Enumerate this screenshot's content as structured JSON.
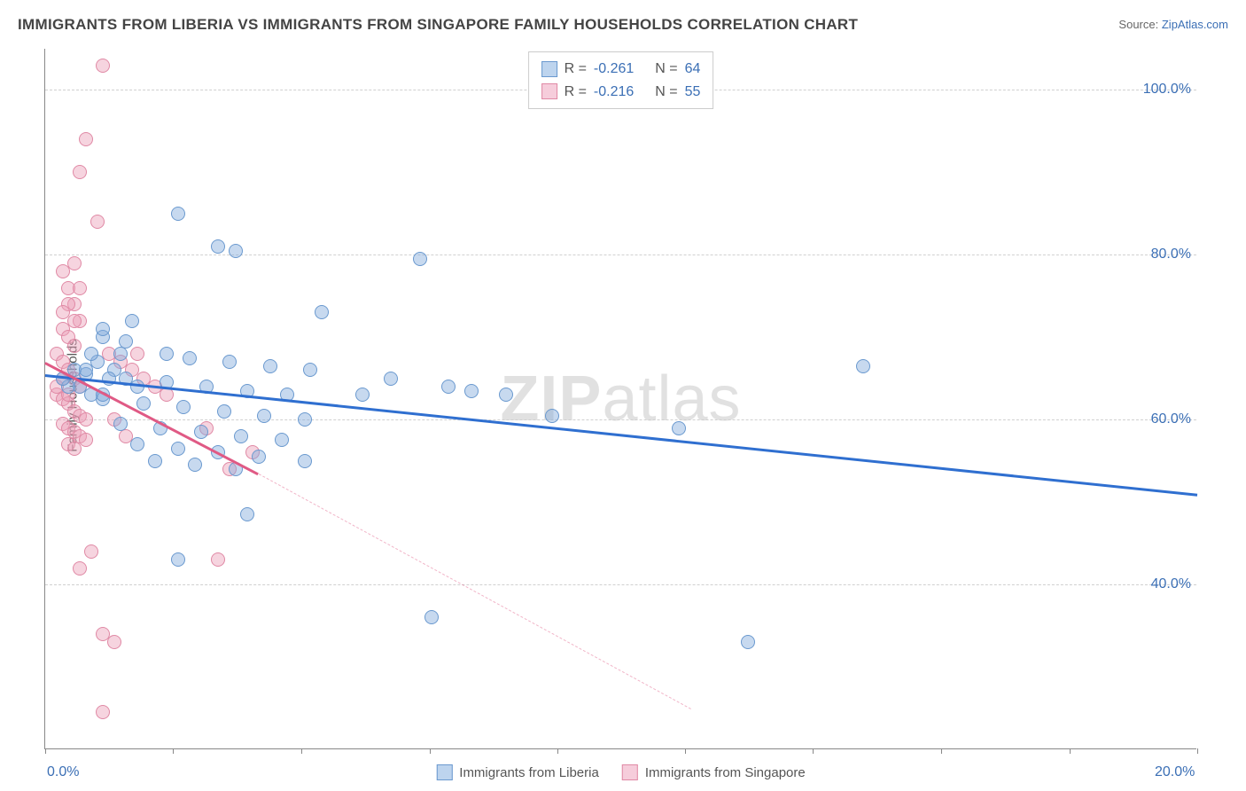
{
  "title": "IMMIGRANTS FROM LIBERIA VS IMMIGRANTS FROM SINGAPORE FAMILY HOUSEHOLDS CORRELATION CHART",
  "source_label": "Source:",
  "source_name": "ZipAtlas.com",
  "ylabel": "Family Households",
  "watermark_bold": "ZIP",
  "watermark_rest": "atlas",
  "chart": {
    "type": "scatter",
    "xlim": [
      0,
      20
    ],
    "ylim": [
      20,
      105
    ],
    "x_ticks": [
      0,
      2.22,
      4.44,
      6.67,
      8.89,
      11.11,
      13.33,
      15.56,
      17.78,
      20
    ],
    "x_tick_labels_visible": {
      "0": "0.0%",
      "20": "20.0%"
    },
    "y_gridlines": [
      40,
      60,
      80,
      100
    ],
    "y_tick_labels": {
      "40": "40.0%",
      "60": "60.0%",
      "80": "80.0%",
      "100": "100.0%"
    },
    "background_color": "#ffffff",
    "grid_color": "#d0d0d0",
    "axis_color": "#888888",
    "label_color": "#3b6fb5"
  },
  "series": [
    {
      "name": "Immigrants from Liberia",
      "color_fill": "rgba(130,170,220,0.45)",
      "color_stroke": "#6a99cf",
      "swatch_fill": "#bdd4ee",
      "swatch_border": "#6a99cf",
      "marker_radius": 8,
      "r_value": "-0.261",
      "n_value": "64",
      "trend": {
        "x1": 0,
        "y1": 65.5,
        "x2": 20,
        "y2": 51,
        "color": "#2f6fd0",
        "width": 2.5,
        "solid_to_x": 20
      },
      "points": [
        [
          2.3,
          85
        ],
        [
          3.0,
          81
        ],
        [
          3.3,
          80.5
        ],
        [
          6.5,
          79.5
        ],
        [
          4.8,
          73
        ],
        [
          1.0,
          70
        ],
        [
          1.4,
          69.5
        ],
        [
          2.1,
          68
        ],
        [
          2.5,
          67.5
        ],
        [
          3.2,
          67
        ],
        [
          3.9,
          66.5
        ],
        [
          4.6,
          66
        ],
        [
          0.7,
          65.5
        ],
        [
          1.4,
          65
        ],
        [
          2.1,
          64.5
        ],
        [
          2.8,
          64
        ],
        [
          3.5,
          63.5
        ],
        [
          4.2,
          63
        ],
        [
          1.0,
          62.5
        ],
        [
          1.7,
          62
        ],
        [
          2.4,
          61.5
        ],
        [
          3.1,
          61
        ],
        [
          3.8,
          60.5
        ],
        [
          4.5,
          60
        ],
        [
          1.3,
          59.5
        ],
        [
          2.0,
          59
        ],
        [
          2.7,
          58.5
        ],
        [
          3.4,
          58
        ],
        [
          4.1,
          57.5
        ],
        [
          1.6,
          57
        ],
        [
          2.3,
          56.5
        ],
        [
          3.0,
          56
        ],
        [
          3.7,
          55.5
        ],
        [
          1.9,
          55
        ],
        [
          2.6,
          54.5
        ],
        [
          3.3,
          54
        ],
        [
          4.5,
          55
        ],
        [
          5.5,
          63
        ],
        [
          6.0,
          65
        ],
        [
          7.0,
          64
        ],
        [
          7.4,
          63.5
        ],
        [
          8.0,
          63
        ],
        [
          8.8,
          60.5
        ],
        [
          11.0,
          59
        ],
        [
          14.2,
          66.5
        ],
        [
          12.2,
          33
        ],
        [
          6.7,
          36
        ],
        [
          3.5,
          48.5
        ],
        [
          2.3,
          43
        ],
        [
          0.8,
          63
        ],
        [
          1.2,
          66
        ],
        [
          1.6,
          64
        ],
        [
          0.9,
          67
        ],
        [
          1.3,
          68
        ],
        [
          0.6,
          64
        ],
        [
          1.0,
          71
        ],
        [
          1.5,
          72
        ],
        [
          0.5,
          66
        ],
        [
          0.8,
          68
        ],
        [
          1.1,
          65
        ],
        [
          0.4,
          64
        ],
        [
          0.7,
          66
        ],
        [
          1.0,
          63
        ],
        [
          0.3,
          65
        ]
      ]
    },
    {
      "name": "Immigrants from Singapore",
      "color_fill": "rgba(235,160,185,0.45)",
      "color_stroke": "#e089a5",
      "swatch_fill": "#f6cddb",
      "swatch_border": "#e089a5",
      "marker_radius": 8,
      "r_value": "-0.216",
      "n_value": "55",
      "trend": {
        "x1": 0,
        "y1": 67,
        "x2": 3.7,
        "y2": 53.5,
        "color": "#e05a85",
        "width": 2.5,
        "dash_x2": 11.2,
        "dash_y2": 25,
        "dash_color": "rgba(224,90,133,0.45)"
      },
      "points": [
        [
          1.0,
          103
        ],
        [
          0.7,
          94
        ],
        [
          0.6,
          90
        ],
        [
          0.9,
          84
        ],
        [
          0.5,
          79
        ],
        [
          0.3,
          78
        ],
        [
          0.4,
          76
        ],
        [
          0.5,
          74
        ],
        [
          0.6,
          72
        ],
        [
          0.3,
          71
        ],
        [
          0.4,
          70
        ],
        [
          0.5,
          69
        ],
        [
          0.2,
          68
        ],
        [
          0.3,
          67
        ],
        [
          0.4,
          66
        ],
        [
          0.5,
          65
        ],
        [
          0.6,
          64
        ],
        [
          0.2,
          63
        ],
        [
          0.3,
          62.5
        ],
        [
          0.4,
          62
        ],
        [
          0.5,
          61
        ],
        [
          0.6,
          60.5
        ],
        [
          0.7,
          60
        ],
        [
          0.3,
          59.5
        ],
        [
          0.4,
          59
        ],
        [
          0.5,
          58.5
        ],
        [
          0.6,
          58
        ],
        [
          0.7,
          57.5
        ],
        [
          0.4,
          57
        ],
        [
          0.5,
          56.5
        ],
        [
          1.1,
          68
        ],
        [
          1.3,
          67
        ],
        [
          1.5,
          66
        ],
        [
          1.7,
          65
        ],
        [
          1.9,
          64
        ],
        [
          2.1,
          63
        ],
        [
          1.2,
          60
        ],
        [
          1.4,
          58
        ],
        [
          1.6,
          68
        ],
        [
          2.8,
          59
        ],
        [
          3.6,
          56
        ],
        [
          3.2,
          54
        ],
        [
          3.0,
          43
        ],
        [
          0.8,
          44
        ],
        [
          0.6,
          42
        ],
        [
          1.0,
          34
        ],
        [
          1.2,
          33
        ],
        [
          1.0,
          24.5
        ],
        [
          0.4,
          74
        ],
        [
          0.6,
          76
        ],
        [
          0.3,
          73
        ],
        [
          0.5,
          72
        ],
        [
          0.2,
          64
        ],
        [
          0.3,
          65
        ],
        [
          0.4,
          63
        ]
      ]
    }
  ],
  "legend_labels": {
    "r_prefix": "R =",
    "n_prefix": "N ="
  }
}
